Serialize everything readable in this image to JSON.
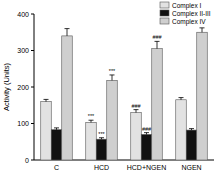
{
  "chart_data": {
    "type": "bar",
    "y_label": "Activity (Units)",
    "categories": [
      "C",
      "HCD",
      "HCD+NGEN",
      "NGEN"
    ],
    "series": [
      {
        "name": "Complex I",
        "color": "#e2e2e2",
        "values": [
          160,
          103,
          130,
          165
        ],
        "errors": [
          6,
          6,
          8,
          6
        ],
        "significance": [
          null,
          "***",
          "###",
          null
        ]
      },
      {
        "name": "Complex II-III",
        "color": "#111111",
        "values": [
          83,
          57,
          70,
          82
        ],
        "errors": [
          5,
          4,
          5,
          4
        ],
        "significance": [
          null,
          "***",
          "###",
          null
        ]
      },
      {
        "name": "Complex IV",
        "color": "#cfcfcf",
        "values": [
          340,
          218,
          305,
          350
        ],
        "errors": [
          20,
          15,
          20,
          12
        ],
        "significance": [
          null,
          "***",
          "###",
          null
        ]
      }
    ],
    "ylim": [
      0,
      400
    ],
    "yticks": [
      0,
      100,
      200,
      300,
      400
    ],
    "grid": false,
    "legend": "top-right"
  }
}
